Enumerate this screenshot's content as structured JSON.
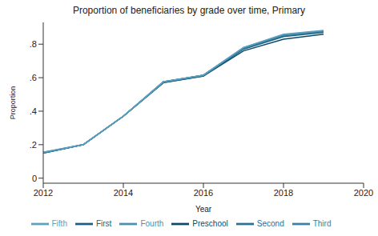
{
  "chart_data": {
    "type": "line",
    "title": "Proportion of beneficiaries by grade over time, Primary",
    "x_label": "Year",
    "y_label": "Proportion",
    "x": [
      2012,
      2013,
      2014,
      2015,
      2016,
      2017,
      2018,
      2019
    ],
    "series": [
      {
        "name": "Preschool",
        "color": "#0b4a68",
        "values": [
          0.15,
          0.2,
          0.37,
          0.57,
          0.61,
          0.76,
          0.83,
          0.86
        ]
      },
      {
        "name": "First",
        "color": "#1a5f80",
        "values": [
          0.15,
          0.2,
          0.37,
          0.57,
          0.61,
          0.77,
          0.845,
          0.87
        ]
      },
      {
        "name": "Second",
        "color": "#2a7090",
        "values": [
          0.15,
          0.2,
          0.37,
          0.575,
          0.615,
          0.775,
          0.85,
          0.875
        ]
      },
      {
        "name": "Third",
        "color": "#3a80a0",
        "values": [
          0.15,
          0.2,
          0.37,
          0.575,
          0.615,
          0.775,
          0.855,
          0.878
        ]
      },
      {
        "name": "Fourth",
        "color": "#4a90b0",
        "values": [
          0.155,
          0.2,
          0.37,
          0.575,
          0.615,
          0.78,
          0.855,
          0.88
        ]
      },
      {
        "name": "Fifth",
        "color": "#5aa0bf",
        "values": [
          0.155,
          0.2,
          0.37,
          0.575,
          0.615,
          0.78,
          0.86,
          0.882
        ]
      }
    ],
    "xlim": [
      2012,
      2020
    ],
    "xticks": [
      2012,
      2014,
      2016,
      2018,
      2020
    ],
    "ylim": [
      -0.03,
      0.93
    ],
    "yticks": [
      0,
      {
        "value": 0.2,
        "label": ".2"
      },
      {
        "value": 0.4,
        "label": ".4"
      },
      {
        "value": 0.6,
        "label": ".6"
      },
      {
        "value": 0.8,
        "label": ".8"
      }
    ],
    "grid": false,
    "legend": "bottom"
  }
}
